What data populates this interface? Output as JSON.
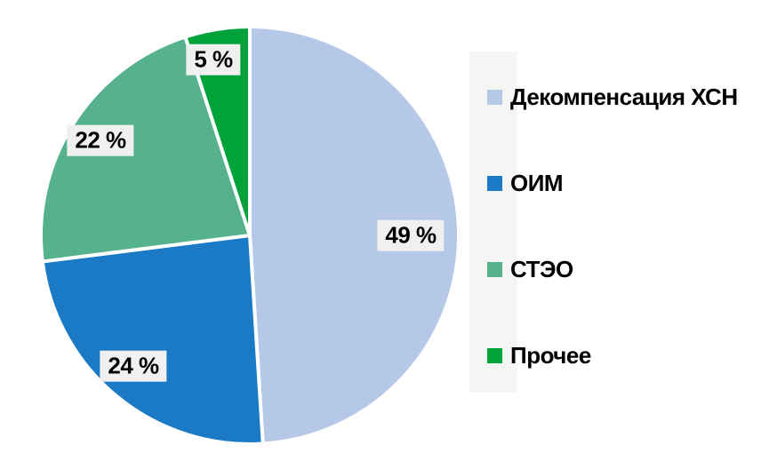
{
  "chart_data": {
    "type": "pie",
    "categories": [
      "Декомпенсация ХСН",
      "ОИМ",
      "СТЭО",
      "Прочее"
    ],
    "values": [
      49,
      24,
      22,
      5
    ],
    "value_labels": [
      "49 %",
      "24 %",
      "22 %",
      "5 %"
    ],
    "colors": [
      "#b5c8e8",
      "#1a7ac5",
      "#55b28d",
      "#00a23a"
    ],
    "start_angle_deg": 0,
    "direction": "clockwise",
    "slice_gap_color": "#ffffff",
    "title": "",
    "legend_position": "right"
  },
  "legend": {
    "items": [
      {
        "label": "Декомпенсация ХСН",
        "color": "#b5c8e8"
      },
      {
        "label": "ОИМ",
        "color": "#1a7ac5"
      },
      {
        "label": "СТЭО",
        "color": "#55b28d"
      },
      {
        "label": "Прочее",
        "color": "#00a23a"
      }
    ]
  }
}
